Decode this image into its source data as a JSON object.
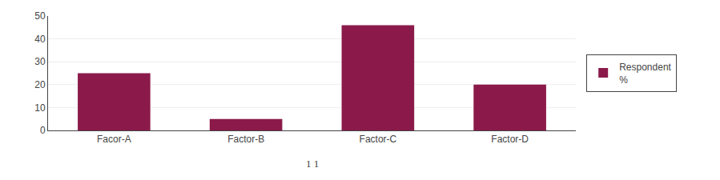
{
  "chart_data": {
    "type": "bar",
    "categories": [
      "Facor-A",
      "Factor-B",
      "Factor-C",
      "Factor-D"
    ],
    "series": [
      {
        "name": "Respondent\n%",
        "color": "#8B1A4A",
        "values": [
          25,
          5,
          46,
          20
        ]
      }
    ],
    "ylim": [
      0,
      50
    ],
    "yticks": [
      0,
      10,
      20,
      30,
      40,
      50
    ],
    "grid": true,
    "legend": "right",
    "annotations": [
      "1 1"
    ]
  }
}
